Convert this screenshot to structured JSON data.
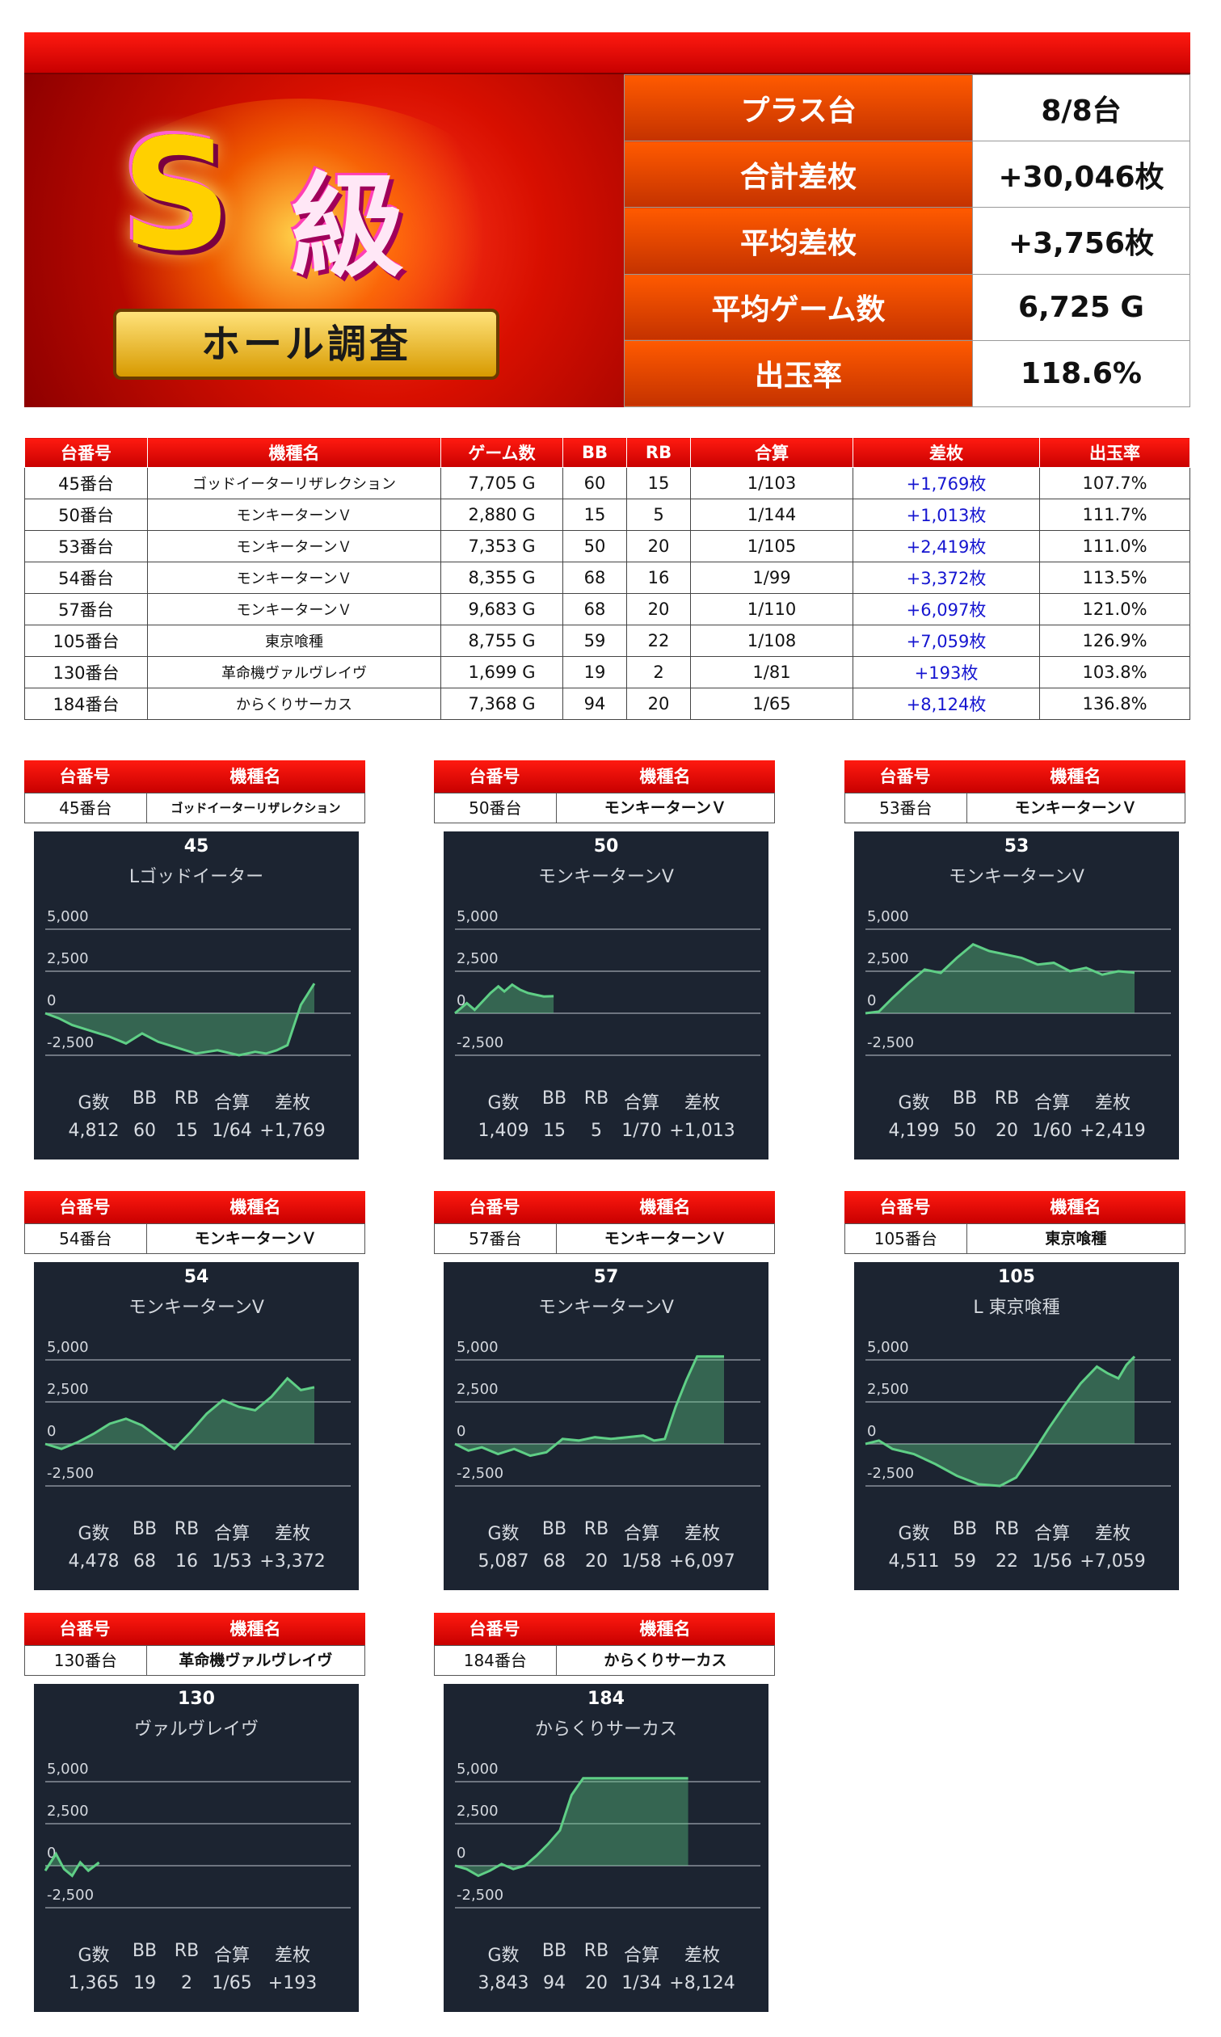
{
  "banner": {
    "logo_letter": "S",
    "logo_kanji": "級",
    "logo_ribbon": "ホール調査"
  },
  "summary": [
    {
      "label": "プラス台",
      "value": "8/8台"
    },
    {
      "label": "合計差枚",
      "value": "+30,046枚"
    },
    {
      "label": "平均差枚",
      "value": "+3,756枚"
    },
    {
      "label": "平均ゲーム数",
      "value": "6,725 G"
    },
    {
      "label": "出玉率",
      "value": "118.6%"
    }
  ],
  "table": {
    "headers": [
      "台番号",
      "機種名",
      "ゲーム数",
      "BB",
      "RB",
      "合算",
      "差枚",
      "出玉率"
    ],
    "rows": [
      [
        "45番台",
        "ゴッドイーターリザレクション",
        "7,705 G",
        "60",
        "15",
        "1/103",
        "+1,769枚",
        "107.7%"
      ],
      [
        "50番台",
        "モンキーターンＶ",
        "2,880 G",
        "15",
        "5",
        "1/144",
        "+1,013枚",
        "111.7%"
      ],
      [
        "53番台",
        "モンキーターンＶ",
        "7,353 G",
        "50",
        "20",
        "1/105",
        "+2,419枚",
        "111.0%"
      ],
      [
        "54番台",
        "モンキーターンＶ",
        "8,355 G",
        "68",
        "16",
        "1/99",
        "+3,372枚",
        "113.5%"
      ],
      [
        "57番台",
        "モンキーターンＶ",
        "9,683 G",
        "68",
        "20",
        "1/110",
        "+6,097枚",
        "121.0%"
      ],
      [
        "105番台",
        "東京喰種",
        "8,755 G",
        "59",
        "22",
        "1/108",
        "+7,059枚",
        "126.9%"
      ],
      [
        "130番台",
        "革命機ヴァルヴレイヴ",
        "1,699 G",
        "19",
        "2",
        "1/81",
        "+193枚",
        "103.8%"
      ],
      [
        "184番台",
        "からくりサーカス",
        "7,368 G",
        "94",
        "20",
        "1/65",
        "+8,124枚",
        "136.8%"
      ]
    ]
  },
  "card_headers": {
    "unit": "台番号",
    "machine": "機種名"
  },
  "card_stat_labels": [
    "G数",
    "BB",
    "RB",
    "合算",
    "差枚"
  ],
  "colors": {
    "accent_red": "#e00000",
    "summary_orange": "#e04a00",
    "graph_bg": "#1c2431",
    "graph_line": "#5fcf86",
    "diff_blue": "#1515d0"
  },
  "chart_data": [
    {
      "type": "area",
      "unit": "45番台",
      "machine": "ゴッドイーターリザレクション",
      "graph_num": "45",
      "graph_title": "Lゴッドイーター",
      "y_ticks": [
        "5,000",
        "2,500",
        "0",
        "-2,500"
      ],
      "ylim": [
        -2500,
        5000
      ],
      "x": [
        0,
        0.05,
        0.1,
        0.18,
        0.24,
        0.3,
        0.36,
        0.42,
        0.48,
        0.56,
        0.64,
        0.72,
        0.78,
        0.82,
        0.86,
        0.9,
        0.95,
        1.0
      ],
      "values": [
        0,
        -300,
        -700,
        -1100,
        -1400,
        -1800,
        -1200,
        -1700,
        -2000,
        -2400,
        -2200,
        -2500,
        -2300,
        -2400,
        -2200,
        -1900,
        500,
        1769
      ],
      "stats": [
        "4,812",
        "60",
        "15",
        "1/64",
        "+1,769"
      ]
    },
    {
      "type": "area",
      "unit": "50番台",
      "machine": "モンキーターンＶ",
      "graph_num": "50",
      "graph_title": "モンキーターンV",
      "y_ticks": [
        "5,000",
        "2,500",
        "0",
        "-2,500"
      ],
      "ylim": [
        -2500,
        5000
      ],
      "x": [
        0,
        0.06,
        0.12,
        0.2,
        0.28,
        0.36,
        0.44,
        0.5,
        0.58,
        0.66,
        0.74,
        0.82,
        0.9,
        1.0
      ],
      "values": [
        0,
        300,
        600,
        200,
        700,
        1200,
        1600,
        1300,
        1700,
        1400,
        1200,
        1100,
        1000,
        1013
      ],
      "stats": [
        "1,409",
        "15",
        "5",
        "1/70",
        "+1,013"
      ]
    },
    {
      "type": "area",
      "unit": "53番台",
      "machine": "モンキーターンＶ",
      "graph_num": "53",
      "graph_title": "モンキーターンV",
      "y_ticks": [
        "5,000",
        "2,500",
        "0",
        "-2,500"
      ],
      "ylim": [
        -2500,
        5000
      ],
      "x": [
        0,
        0.05,
        0.1,
        0.16,
        0.22,
        0.28,
        0.34,
        0.4,
        0.46,
        0.52,
        0.58,
        0.64,
        0.7,
        0.76,
        0.82,
        0.88,
        0.94,
        1.0
      ],
      "values": [
        0,
        100,
        900,
        1800,
        2600,
        2400,
        3300,
        4100,
        3700,
        3500,
        3300,
        2900,
        3000,
        2500,
        2700,
        2300,
        2500,
        2419
      ],
      "stats": [
        "4,199",
        "50",
        "20",
        "1/60",
        "+2,419"
      ]
    },
    {
      "type": "area",
      "unit": "54番台",
      "machine": "モンキーターンＶ",
      "graph_num": "54",
      "graph_title": "モンキーターンV",
      "y_ticks": [
        "5,000",
        "2,500",
        "0",
        "-2,500"
      ],
      "ylim": [
        -2500,
        5000
      ],
      "x": [
        0,
        0.06,
        0.12,
        0.18,
        0.24,
        0.3,
        0.36,
        0.42,
        0.48,
        0.54,
        0.6,
        0.66,
        0.72,
        0.78,
        0.84,
        0.9,
        0.95,
        1.0
      ],
      "values": [
        0,
        -300,
        100,
        600,
        1200,
        1500,
        1100,
        400,
        -300,
        700,
        1800,
        2600,
        2200,
        2000,
        2800,
        3900,
        3200,
        3372
      ],
      "stats": [
        "4,478",
        "68",
        "16",
        "1/53",
        "+3,372"
      ]
    },
    {
      "type": "area",
      "unit": "57番台",
      "machine": "モンキーターンＶ",
      "graph_num": "57",
      "graph_title": "モンキーターンV",
      "y_ticks": [
        "5,000",
        "2,500",
        "0",
        "-2,500"
      ],
      "ylim": [
        -2500,
        5000
      ],
      "x": [
        0,
        0.05,
        0.1,
        0.16,
        0.22,
        0.28,
        0.34,
        0.4,
        0.46,
        0.52,
        0.58,
        0.64,
        0.7,
        0.74,
        0.78,
        0.82,
        0.86,
        0.9,
        0.94,
        1.0
      ],
      "values": [
        0,
        -400,
        -200,
        -600,
        -300,
        -700,
        -500,
        300,
        200,
        400,
        300,
        400,
        500,
        200,
        300,
        2200,
        3800,
        5200,
        5200,
        5200
      ],
      "stats": [
        "5,087",
        "68",
        "20",
        "1/58",
        "+6,097"
      ]
    },
    {
      "type": "area",
      "unit": "105番台",
      "machine": "東京喰種",
      "graph_num": "105",
      "graph_title": "L 東京喰種",
      "y_ticks": [
        "5,000",
        "2,500",
        "0",
        "-2,500"
      ],
      "ylim": [
        -2500,
        5000
      ],
      "x": [
        0,
        0.05,
        0.1,
        0.18,
        0.26,
        0.34,
        0.42,
        0.5,
        0.56,
        0.62,
        0.68,
        0.74,
        0.8,
        0.86,
        0.9,
        0.94,
        0.97,
        1.0
      ],
      "values": [
        0,
        200,
        -300,
        -600,
        -1200,
        -1900,
        -2400,
        -2500,
        -2000,
        -600,
        900,
        2300,
        3600,
        4600,
        4200,
        3900,
        4700,
        5200
      ],
      "stats": [
        "4,511",
        "59",
        "22",
        "1/56",
        "+7,059"
      ]
    },
    {
      "type": "area",
      "unit": "130番台",
      "machine": "革命機ヴァルヴレイヴ",
      "graph_num": "130",
      "graph_title": "ヴァルヴレイヴ",
      "y_ticks": [
        "5,000",
        "2,500",
        "0",
        "-2,500"
      ],
      "ylim": [
        -2500,
        5000
      ],
      "x": [
        0,
        0.2,
        0.35,
        0.5,
        0.65,
        0.8,
        1.0
      ],
      "values": [
        -300,
        700,
        -200,
        -600,
        200,
        -300,
        193
      ],
      "stats": [
        "1,365",
        "19",
        "2",
        "1/65",
        "+193"
      ]
    },
    {
      "type": "area",
      "unit": "184番台",
      "machine": "からくりサーカス",
      "graph_num": "184",
      "graph_title": "からくりサーカス",
      "y_ticks": [
        "5,000",
        "2,500",
        "0",
        "-2,500"
      ],
      "ylim": [
        -2500,
        5000
      ],
      "x": [
        0,
        0.05,
        0.1,
        0.15,
        0.2,
        0.25,
        0.3,
        0.35,
        0.4,
        0.45,
        0.5,
        0.55,
        0.6,
        0.7,
        0.8,
        0.9,
        1.0
      ],
      "values": [
        0,
        -200,
        -600,
        -300,
        100,
        -200,
        0,
        600,
        1300,
        2100,
        4200,
        5200,
        5200,
        5200,
        5200,
        5200,
        5200
      ],
      "stats": [
        "3,843",
        "94",
        "20",
        "1/34",
        "+8,124"
      ]
    }
  ]
}
